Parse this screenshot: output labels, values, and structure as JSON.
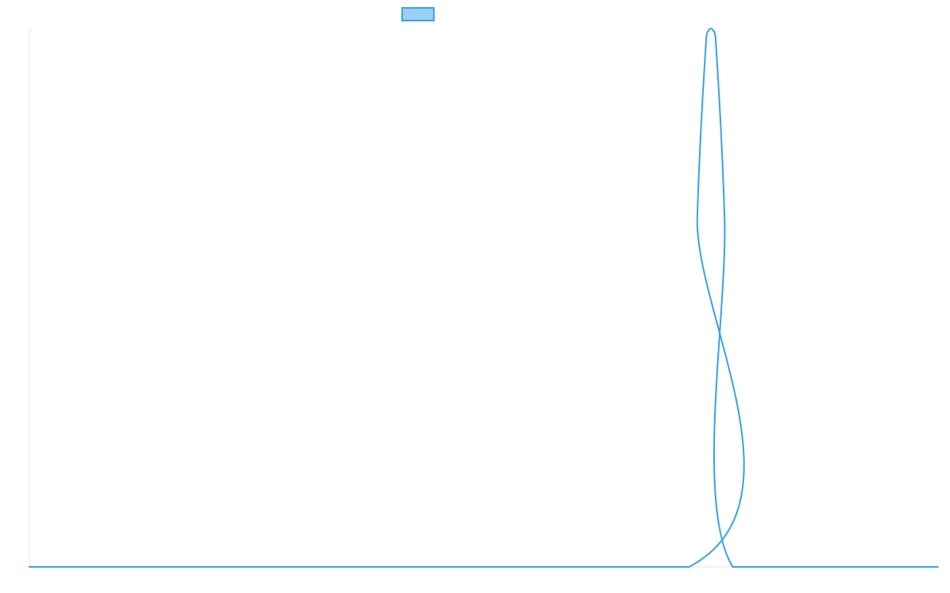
{
  "chart_data": {
    "type": "line",
    "title": "",
    "xlabel": "",
    "ylabel": "",
    "grid": false,
    "legend": "top-center",
    "xlim": [
      0,
      100
    ],
    "ylim": [
      0,
      1
    ],
    "series": [
      {
        "name": "",
        "color": "#36a2eb",
        "fill_color": "#9ad0f5",
        "x": [
          0,
          72.6,
          73.5,
          74.5,
          74.7,
          75.0,
          75.3,
          75.5,
          76.5,
          77.4,
          100
        ],
        "y": [
          0,
          0,
          0.65,
          0.985,
          0.995,
          1.0,
          0.995,
          0.985,
          0.65,
          0,
          0
        ]
      }
    ]
  }
}
